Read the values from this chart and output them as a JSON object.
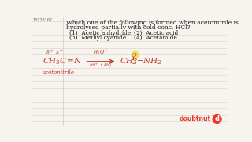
{
  "bg_color": "#f7f3ee",
  "line_color": "#c8c0b0",
  "text_color": "#1a1a1a",
  "chem_color": "#c0392b",
  "id_text": "13170167",
  "title_line1": "Which one of the following is formed when acetonitrile is",
  "title_line2": "hydrolysed partially with cold conc. HCl?",
  "opt1": "(1)  Acetic anhydride",
  "opt2": "(2)  Acetic acid",
  "opt3": "(3)  Methyl cyanide",
  "opt4": "(4)  Acetamide",
  "label_acetonitrile": "acetonitrile",
  "watermark": "doubtnut",
  "watermark_color": "#e8352a",
  "logo_color": "#e8352a",
  "yellow_highlight": "#f0e040"
}
